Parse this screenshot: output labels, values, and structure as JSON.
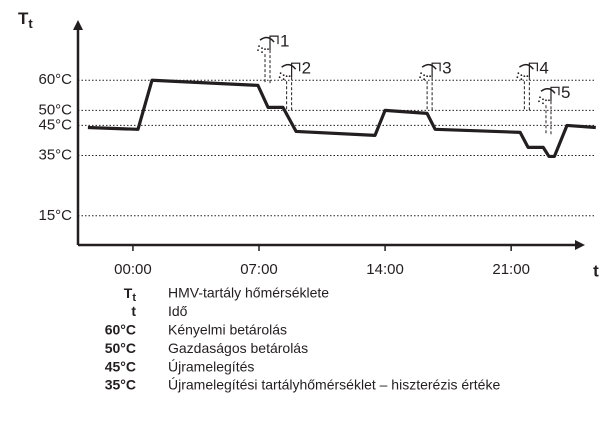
{
  "chart_data": {
    "type": "line",
    "ylabel": {
      "main": "T",
      "sub": "t"
    },
    "xlabel": "t",
    "x": [
      -2.5,
      0.28,
      1.06,
      6.94,
      7.5,
      8.33,
      9.06,
      13.44,
      14,
      16.33,
      16.78,
      21.5,
      21.94,
      22.78,
      23.1,
      23.4,
      24.1,
      25.7
    ],
    "series": [
      {
        "color": "#231f20",
        "values": [
          44.3,
          43.7,
          60,
          58.3,
          51,
          51,
          43,
          41.7,
          50,
          49,
          43.7,
          42.7,
          37.7,
          37.7,
          34.7,
          34.7,
          45,
          44.3
        ]
      }
    ],
    "xlim": [
      -3.05,
      25.1
    ],
    "ylim": [
      5.3,
      80
    ],
    "xticks": [
      {
        "value": 0,
        "label": "00:00"
      },
      {
        "value": 7,
        "label": "07:00"
      },
      {
        "value": 14,
        "label": "14:00"
      },
      {
        "value": 21,
        "label": "21:00"
      }
    ],
    "yticks": [
      {
        "value": 60,
        "label": "60°C"
      },
      {
        "value": 50,
        "label": "50°C"
      },
      {
        "value": 45,
        "label": "45°C"
      },
      {
        "value": 35,
        "label": "35°C"
      },
      {
        "value": 15,
        "label": "15°C"
      }
    ],
    "grid": true,
    "annotations": [
      {
        "label": "1",
        "x": 7.5,
        "y": 72
      },
      {
        "label": "2",
        "x": 8.7,
        "y": 63
      },
      {
        "label": "3",
        "x": 16.5,
        "y": 63
      },
      {
        "label": "4",
        "x": 21.9,
        "y": 63
      },
      {
        "label": "5",
        "x": 23.1,
        "y": 55
      }
    ],
    "legend_items": [
      {
        "symbol": {
          "main": "T",
          "sub": "t"
        },
        "text": "HMV-tartály hőmérséklete"
      },
      {
        "symbol": "t",
        "text": "Idő"
      },
      {
        "symbol": "60°C",
        "text": "Kényelmi betárolás"
      },
      {
        "symbol": "50°C",
        "text": "Gazdaságos betárolás"
      },
      {
        "symbol": "45°C",
        "text": "Újramelegítés"
      },
      {
        "symbol": "35°C",
        "text": "Újramelegítési tartályhőmérséklet – hiszterézis értéke"
      }
    ]
  }
}
